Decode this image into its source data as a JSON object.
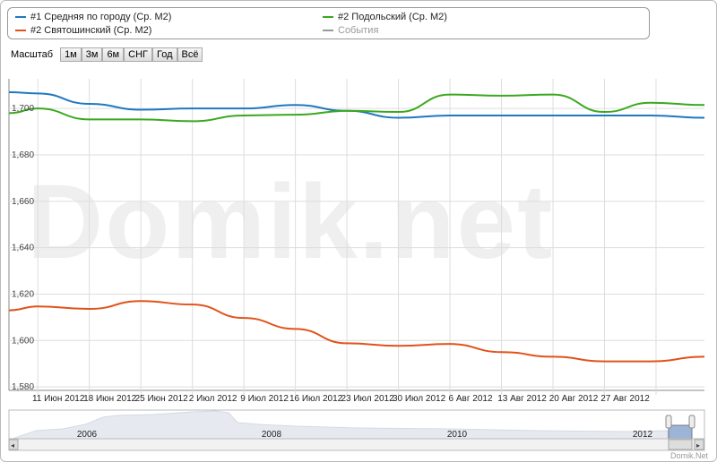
{
  "legend": [
    {
      "label": "#1 Средняя по городу (Ср. М2)",
      "color": "#1f78c1"
    },
    {
      "label": "#2 Святошинский (Ср. М2)",
      "color": "#e0531a"
    },
    {
      "label": "#2 Подольский (Ср. М2)",
      "color": "#3aa81f"
    },
    {
      "label": "События",
      "color": "#999999"
    }
  ],
  "zoom": {
    "label": "Масштаб",
    "buttons": [
      "1м",
      "3м",
      "6м",
      "СНГ",
      "Год",
      "Всё"
    ]
  },
  "watermark": "Domik.net",
  "credit": "Domik.Net",
  "chart_data": {
    "type": "line",
    "xlabel": "",
    "ylabel": "",
    "x_unit": "weeks from 11 Июн 2012",
    "xlim": [
      -0.56,
      12.94
    ],
    "ylim": [
      1578.5,
      1712.8
    ],
    "yticks": [
      "1,580",
      "1,600",
      "1,620",
      "1,640",
      "1,660",
      "1,680",
      "1,700"
    ],
    "ytick_values": [
      1580,
      1600,
      1620,
      1640,
      1660,
      1680,
      1700
    ],
    "xticks": [
      "11 Июн 2012",
      "18 Июн 2012",
      "25 Июн 2012",
      "2 Июл 2012",
      "9 Июл 2012",
      "16 Июл 2012",
      "23 Июл 2012",
      "30 Июл 2012",
      "6 Авг 2012",
      "13 Авг 2012",
      "20 Авг 2012",
      "27 Авг 2012"
    ],
    "x": [
      -0.56,
      0,
      1,
      2,
      3,
      4,
      5,
      6,
      7,
      8,
      9,
      10,
      11,
      11.9,
      12.94
    ],
    "series": [
      {
        "name": "#1 Средняя по городу (Ср. М2)",
        "color": "#1f78c1",
        "values": [
          1707,
          1706.5,
          1702,
          1699.5,
          1700,
          1700,
          1701.5,
          1699,
          1696,
          1697,
          1697,
          1697,
          1697,
          1697,
          1696
        ]
      },
      {
        "name": "#2 Подольский (Ср. М2)",
        "color": "#3aa81f",
        "values": [
          1698,
          1700,
          1695.3,
          1695.3,
          1694.5,
          1697,
          1697.3,
          1699,
          1698.5,
          1706,
          1705.5,
          1706,
          1698.5,
          1702.5,
          1701.5
        ]
      },
      {
        "name": "#2 Святошинский (Ср. М2)",
        "color": "#e0531a",
        "values": [
          1613,
          1614.7,
          1613.6,
          1617,
          1615.5,
          1609.7,
          1605,
          1598.8,
          1597.7,
          1598.5,
          1595,
          1593,
          1591,
          1591,
          1593
        ]
      }
    ],
    "navigator": {
      "years": [
        "2006",
        "2008",
        "2010",
        "2012"
      ],
      "selected_range": "Jun–Aug 2012"
    }
  }
}
